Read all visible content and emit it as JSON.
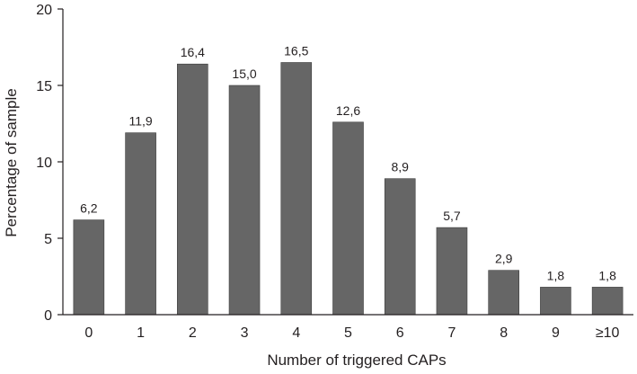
{
  "chart_data": {
    "type": "bar",
    "categories": [
      "0",
      "1",
      "2",
      "3",
      "4",
      "5",
      "6",
      "7",
      "8",
      "9",
      "≥10"
    ],
    "values": [
      6.2,
      11.9,
      16.4,
      15.0,
      16.5,
      12.6,
      8.9,
      5.7,
      2.9,
      1.8,
      1.8
    ],
    "value_labels": [
      "6,2",
      "11,9",
      "16,4",
      "15,0",
      "16,5",
      "12,6",
      "8,9",
      "5,7",
      "2,9",
      "1,8",
      "1,8"
    ],
    "xlabel": "Number of triggered CAPs",
    "ylabel": "Percentage of sample",
    "ylim": [
      0,
      20
    ],
    "yticks": [
      "0",
      "5",
      "10",
      "15",
      "20"
    ],
    "grid": false,
    "bar_color": "#666666"
  }
}
